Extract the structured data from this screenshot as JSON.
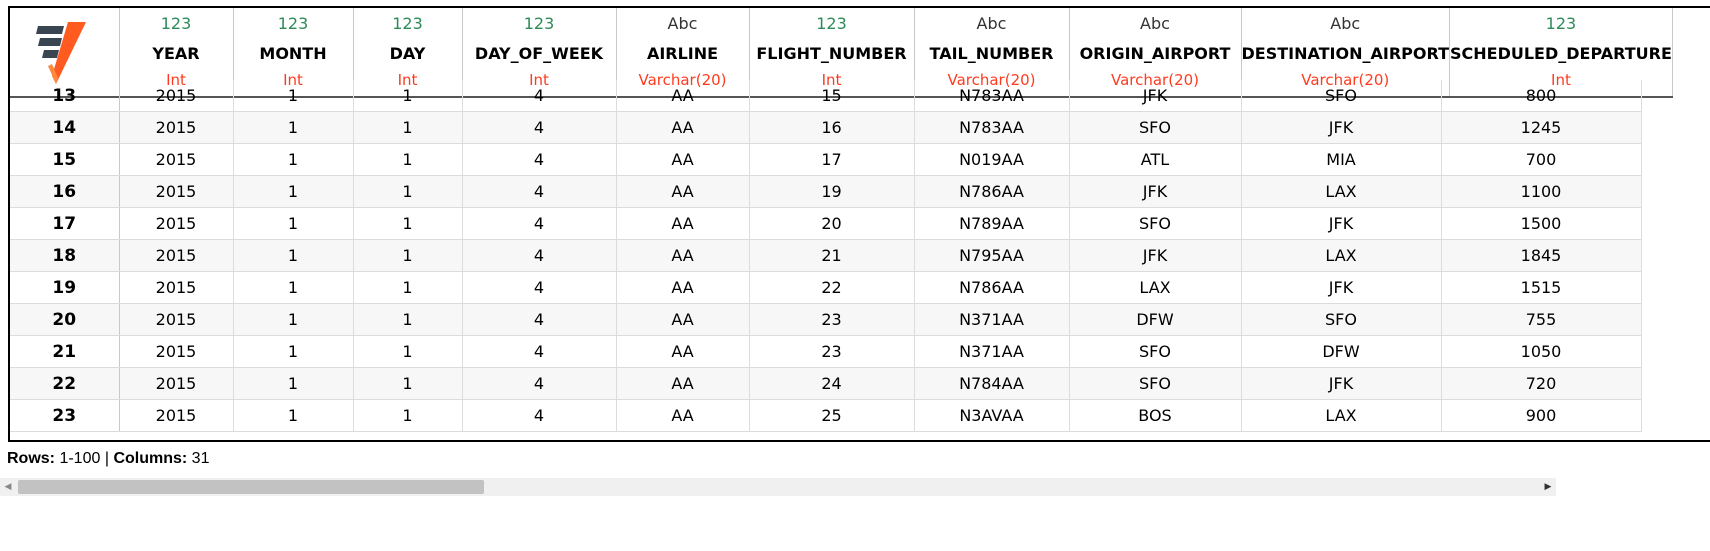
{
  "columns": [
    {
      "type_glyph": "123",
      "name": "YEAR",
      "dtype": "Int"
    },
    {
      "type_glyph": "123",
      "name": "MONTH",
      "dtype": "Int"
    },
    {
      "type_glyph": "123",
      "name": "DAY",
      "dtype": "Int"
    },
    {
      "type_glyph": "123",
      "name": "DAY_OF_WEEK",
      "dtype": "Int"
    },
    {
      "type_glyph": "Abc",
      "name": "AIRLINE",
      "dtype": "Varchar(20)"
    },
    {
      "type_glyph": "123",
      "name": "FLIGHT_NUMBER",
      "dtype": "Int"
    },
    {
      "type_glyph": "Abc",
      "name": "TAIL_NUMBER",
      "dtype": "Varchar(20)"
    },
    {
      "type_glyph": "Abc",
      "name": "ORIGIN_AIRPORT",
      "dtype": "Varchar(20)"
    },
    {
      "type_glyph": "Abc",
      "name": "DESTINATION_AIRPORT",
      "dtype": "Varchar(20)"
    },
    {
      "type_glyph": "123",
      "name": "SCHEDULED_DEPARTURE",
      "dtype": "Int"
    }
  ],
  "rows": [
    {
      "num": "13",
      "cells": [
        "2015",
        "1",
        "1",
        "4",
        "AA",
        "15",
        "N783AA",
        "JFK",
        "SFO",
        "800"
      ]
    },
    {
      "num": "14",
      "cells": [
        "2015",
        "1",
        "1",
        "4",
        "AA",
        "16",
        "N783AA",
        "SFO",
        "JFK",
        "1245"
      ]
    },
    {
      "num": "15",
      "cells": [
        "2015",
        "1",
        "1",
        "4",
        "AA",
        "17",
        "N019AA",
        "ATL",
        "MIA",
        "700"
      ]
    },
    {
      "num": "16",
      "cells": [
        "2015",
        "1",
        "1",
        "4",
        "AA",
        "19",
        "N786AA",
        "JFK",
        "LAX",
        "1100"
      ]
    },
    {
      "num": "17",
      "cells": [
        "2015",
        "1",
        "1",
        "4",
        "AA",
        "20",
        "N789AA",
        "SFO",
        "JFK",
        "1500"
      ]
    },
    {
      "num": "18",
      "cells": [
        "2015",
        "1",
        "1",
        "4",
        "AA",
        "21",
        "N795AA",
        "JFK",
        "LAX",
        "1845"
      ]
    },
    {
      "num": "19",
      "cells": [
        "2015",
        "1",
        "1",
        "4",
        "AA",
        "22",
        "N786AA",
        "LAX",
        "JFK",
        "1515"
      ]
    },
    {
      "num": "20",
      "cells": [
        "2015",
        "1",
        "1",
        "4",
        "AA",
        "23",
        "N371AA",
        "DFW",
        "SFO",
        "755"
      ]
    },
    {
      "num": "21",
      "cells": [
        "2015",
        "1",
        "1",
        "4",
        "AA",
        "23",
        "N371AA",
        "SFO",
        "DFW",
        "1050"
      ]
    },
    {
      "num": "22",
      "cells": [
        "2015",
        "1",
        "1",
        "4",
        "AA",
        "24",
        "N784AA",
        "SFO",
        "JFK",
        "720"
      ]
    },
    {
      "num": "23",
      "cells": [
        "2015",
        "1",
        "1",
        "4",
        "AA",
        "25",
        "N3AVAA",
        "BOS",
        "LAX",
        "900"
      ]
    }
  ],
  "status": {
    "rows_label": "Rows:",
    "rows_value": "1-100",
    "separator": "|",
    "columns_label": "Columns:",
    "columns_value": "31"
  },
  "colors": {
    "numeric_type": "#2e8b57",
    "dtype": "#ff3b1f",
    "logo_dark": "#3a4552",
    "logo_orange": "#ff5a1f"
  },
  "icons": {
    "logo": "app-logo-icon",
    "scroll_left": "scroll-left-arrow-icon",
    "scroll_right": "scroll-right-arrow-icon"
  }
}
